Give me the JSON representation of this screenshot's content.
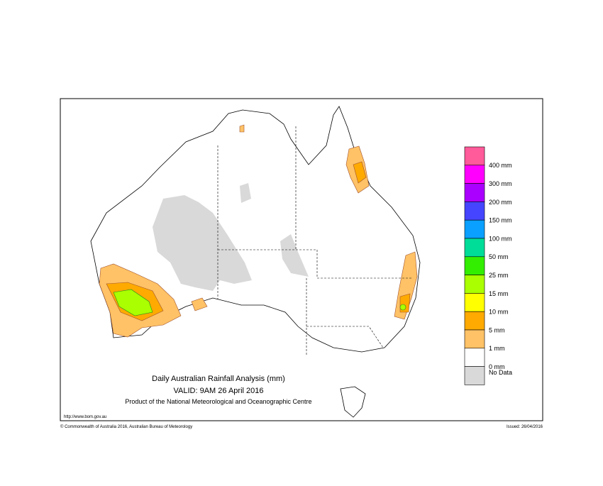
{
  "map": {
    "title": "Daily Australian Rainfall Analysis (mm)",
    "valid": "VALID: 9AM 26 April 2016",
    "product": "Product of the National Meteorological and Oceanographic Centre",
    "url": "http://www.bom.gov.au",
    "copyright": "© Commonwealth of Australia 2016, Australian Bureau of Meteorology",
    "issued": "Issued: 26/04/2016",
    "legend": {
      "colors": [
        "#ff5a9a",
        "#ff00ff",
        "#aa00ff",
        "#4545ff",
        "#0aa0ff",
        "#00dd99",
        "#33ee00",
        "#aaff00",
        "#ffff00",
        "#ffaa00",
        "#ffc266",
        "#ffffff",
        "#d9d9d9"
      ],
      "labels": [
        "400 mm",
        "300 mm",
        "200 mm",
        "150 mm",
        "100 mm",
        "50 mm",
        "25 mm",
        "15 mm",
        "10 mm",
        "5 mm",
        "1 mm",
        "0 mm",
        "No Data"
      ]
    }
  }
}
